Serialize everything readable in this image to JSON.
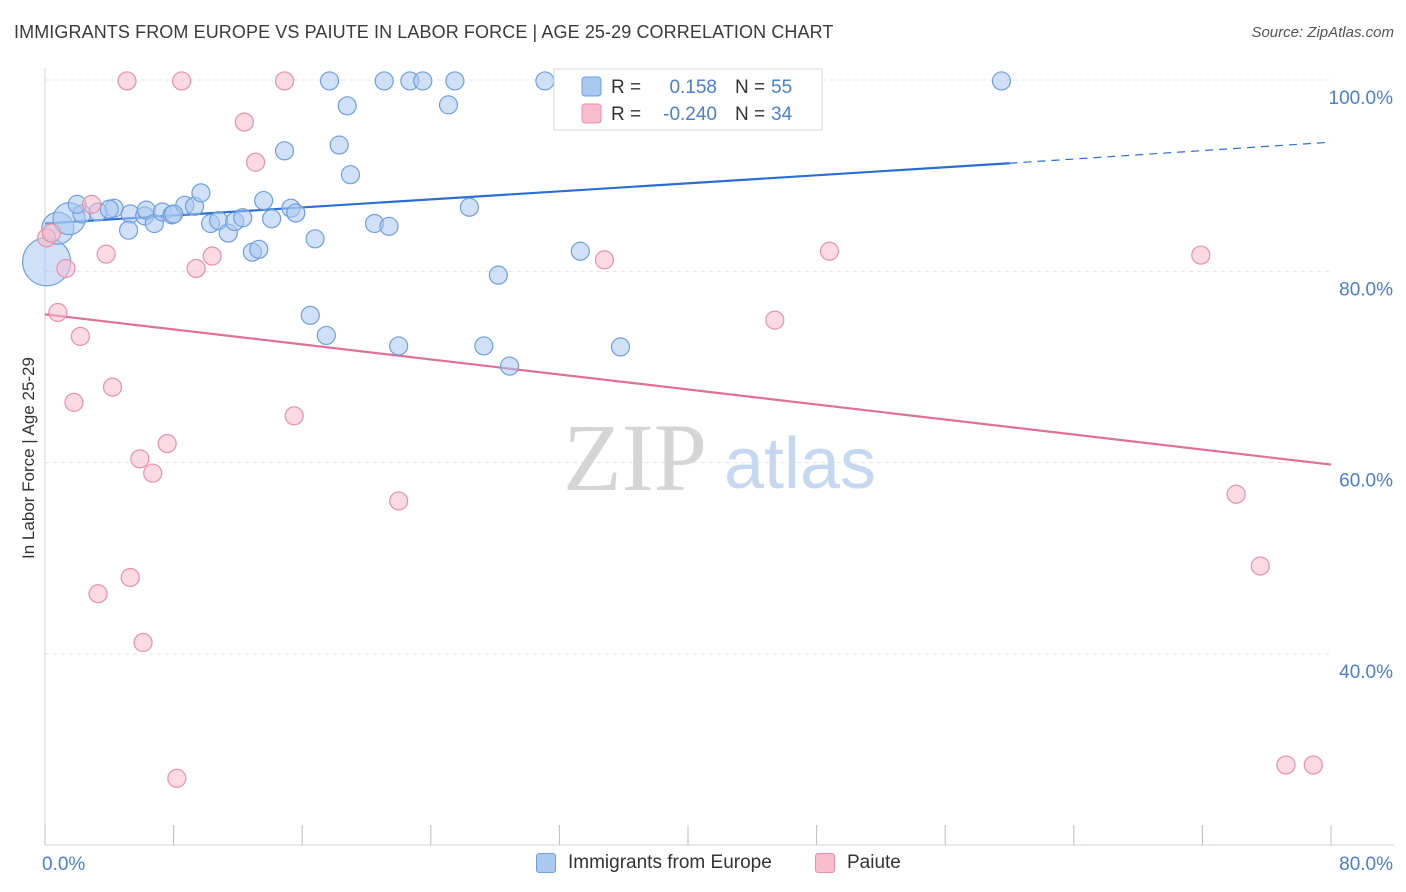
{
  "title": "IMMIGRANTS FROM EUROPE VS PAIUTE IN LABOR FORCE | AGE 25-29 CORRELATION CHART",
  "source": "Source: ZipAtlas.com",
  "watermark": {
    "zip": "ZIP",
    "atlas": "atlas"
  },
  "colors": {
    "blue_fill": "#aac8f0",
    "blue_stroke": "#6f9fdc",
    "blue_line": "#2b6fd0",
    "pink_fill": "#f7bccd",
    "pink_stroke": "#e891ab",
    "pink_line": "#e0709a",
    "axis_text": "#4a7fd0",
    "grid": "#dfe3ea"
  },
  "stats_legend": [
    {
      "r_label": "R =",
      "r_value": "0.158",
      "n_label": "N =",
      "n_value": "55",
      "series": "blue"
    },
    {
      "r_label": "R =",
      "r_value": "-0.240",
      "n_label": "N =",
      "n_value": "34",
      "series": "pink"
    }
  ],
  "bottom_legend": [
    {
      "label": "Immigrants from Europe",
      "series": "blue"
    },
    {
      "label": "Paiute",
      "series": "pink"
    }
  ],
  "chart_data": {
    "type": "scatter",
    "title": "IMMIGRANTS FROM EUROPE VS PAIUTE IN LABOR FORCE | AGE 25-29 CORRELATION CHART",
    "xlabel": "",
    "ylabel": "In Labor Force | Age 25-29",
    "xlim": [
      0,
      80
    ],
    "ylim": [
      22,
      102
    ],
    "x_tick_labels": [
      {
        "value": 0,
        "label": "0.0%"
      },
      {
        "value": 80,
        "label": "80.0%"
      }
    ],
    "y_tick_labels": [
      {
        "value": 100,
        "label": "100.0%"
      },
      {
        "value": 80,
        "label": "80.0%"
      },
      {
        "value": 60,
        "label": "60.0%"
      },
      {
        "value": 40,
        "label": "40.0%"
      }
    ],
    "series": [
      {
        "name": "Immigrants from Europe",
        "color": "blue",
        "trend": {
          "x0": 0,
          "y0": 85.0,
          "x1": 60,
          "y1": 91.3,
          "dash_to_x": 80,
          "dash_to_y": 93.5
        },
        "points": [
          {
            "x": 0.1,
            "y": 81.0,
            "big": 2
          },
          {
            "x": 0.8,
            "y": 84.5,
            "big": 1
          },
          {
            "x": 1.5,
            "y": 85.5,
            "big": 1
          },
          {
            "x": 2.3,
            "y": 86.0
          },
          {
            "x": 3.3,
            "y": 86.2
          },
          {
            "x": 4.3,
            "y": 86.6
          },
          {
            "x": 5.3,
            "y": 86.0
          },
          {
            "x": 5.2,
            "y": 84.3
          },
          {
            "x": 6.2,
            "y": 85.8
          },
          {
            "x": 6.3,
            "y": 86.4
          },
          {
            "x": 6.8,
            "y": 85.0
          },
          {
            "x": 7.3,
            "y": 86.2
          },
          {
            "x": 7.9,
            "y": 85.9
          },
          {
            "x": 8.7,
            "y": 86.9
          },
          {
            "x": 9.3,
            "y": 86.8
          },
          {
            "x": 9.7,
            "y": 88.2
          },
          {
            "x": 10.3,
            "y": 85.0
          },
          {
            "x": 10.8,
            "y": 85.3
          },
          {
            "x": 11.4,
            "y": 84.0
          },
          {
            "x": 11.8,
            "y": 85.2
          },
          {
            "x": 12.3,
            "y": 85.6
          },
          {
            "x": 12.9,
            "y": 82.0
          },
          {
            "x": 13.3,
            "y": 82.3
          },
          {
            "x": 13.6,
            "y": 87.4
          },
          {
            "x": 14.1,
            "y": 85.5
          },
          {
            "x": 14.9,
            "y": 92.6
          },
          {
            "x": 15.3,
            "y": 86.6
          },
          {
            "x": 15.6,
            "y": 86.1
          },
          {
            "x": 16.5,
            "y": 75.4
          },
          {
            "x": 16.8,
            "y": 83.4
          },
          {
            "x": 17.5,
            "y": 73.3
          },
          {
            "x": 17.7,
            "y": 99.9
          },
          {
            "x": 18.3,
            "y": 93.2
          },
          {
            "x": 18.8,
            "y": 97.3
          },
          {
            "x": 19.0,
            "y": 90.1
          },
          {
            "x": 20.5,
            "y": 85.0
          },
          {
            "x": 21.1,
            "y": 99.9
          },
          {
            "x": 21.4,
            "y": 84.7
          },
          {
            "x": 22.0,
            "y": 72.2
          },
          {
            "x": 22.7,
            "y": 99.9
          },
          {
            "x": 23.5,
            "y": 99.9
          },
          {
            "x": 25.1,
            "y": 97.4
          },
          {
            "x": 25.5,
            "y": 99.9
          },
          {
            "x": 26.4,
            "y": 86.7
          },
          {
            "x": 27.3,
            "y": 72.2
          },
          {
            "x": 28.2,
            "y": 79.6
          },
          {
            "x": 28.9,
            "y": 70.1
          },
          {
            "x": 31.1,
            "y": 99.9
          },
          {
            "x": 33.3,
            "y": 82.1
          },
          {
            "x": 35.8,
            "y": 72.1
          },
          {
            "x": 45.5,
            "y": 99.9
          },
          {
            "x": 59.5,
            "y": 99.9
          },
          {
            "x": 2.0,
            "y": 87.0
          },
          {
            "x": 4.0,
            "y": 86.5
          },
          {
            "x": 8.0,
            "y": 86.0
          }
        ]
      },
      {
        "name": "Paiute",
        "color": "pink",
        "trend": {
          "x0": 0,
          "y0": 75.5,
          "x1": 80,
          "y1": 59.8
        },
        "points": [
          {
            "x": 0.1,
            "y": 83.5
          },
          {
            "x": 0.8,
            "y": 75.7
          },
          {
            "x": 1.3,
            "y": 80.3
          },
          {
            "x": 1.8,
            "y": 66.3
          },
          {
            "x": 2.2,
            "y": 73.2
          },
          {
            "x": 2.9,
            "y": 87.0
          },
          {
            "x": 3.3,
            "y": 46.3
          },
          {
            "x": 3.8,
            "y": 81.8
          },
          {
            "x": 4.2,
            "y": 67.9
          },
          {
            "x": 5.1,
            "y": 99.9
          },
          {
            "x": 5.3,
            "y": 48.0
          },
          {
            "x": 5.9,
            "y": 60.4
          },
          {
            "x": 6.1,
            "y": 41.2
          },
          {
            "x": 6.7,
            "y": 58.9
          },
          {
            "x": 7.6,
            "y": 62.0
          },
          {
            "x": 8.2,
            "y": 27.0
          },
          {
            "x": 8.5,
            "y": 99.9
          },
          {
            "x": 9.4,
            "y": 80.3
          },
          {
            "x": 10.4,
            "y": 81.6
          },
          {
            "x": 12.4,
            "y": 95.6
          },
          {
            "x": 13.1,
            "y": 91.4
          },
          {
            "x": 14.9,
            "y": 99.9
          },
          {
            "x": 15.5,
            "y": 64.9
          },
          {
            "x": 22.0,
            "y": 56.0
          },
          {
            "x": 34.8,
            "y": 81.2
          },
          {
            "x": 45.4,
            "y": 74.9
          },
          {
            "x": 45.8,
            "y": 99.9
          },
          {
            "x": 48.8,
            "y": 82.1
          },
          {
            "x": 71.9,
            "y": 81.7
          },
          {
            "x": 74.1,
            "y": 56.7
          },
          {
            "x": 75.6,
            "y": 49.2
          },
          {
            "x": 77.2,
            "y": 28.4
          },
          {
            "x": 78.9,
            "y": 28.4
          },
          {
            "x": 0.4,
            "y": 84.0
          }
        ]
      }
    ]
  }
}
